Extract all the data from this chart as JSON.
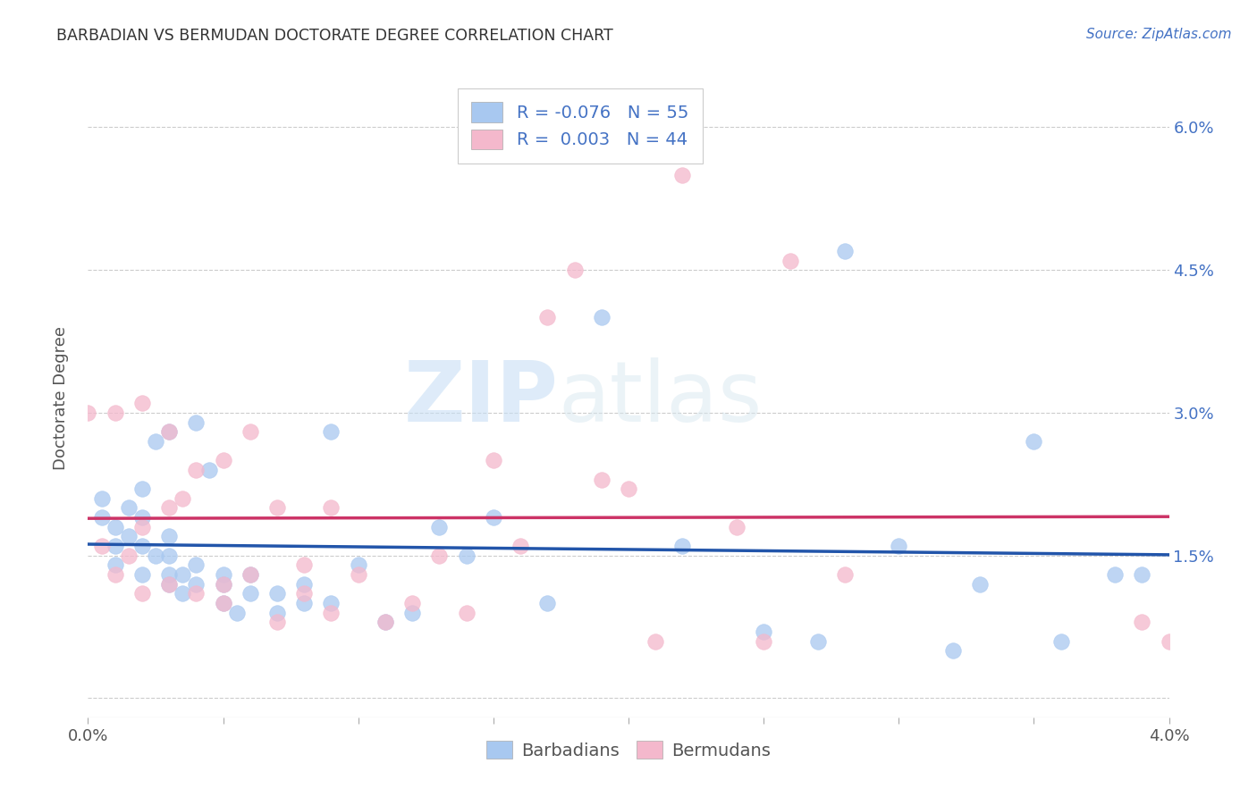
{
  "title": "BARBADIAN VS BERMUDAN DOCTORATE DEGREE CORRELATION CHART",
  "source": "Source: ZipAtlas.com",
  "ylabel": "Doctorate Degree",
  "ytick_vals": [
    0.0,
    0.015,
    0.03,
    0.045,
    0.06
  ],
  "ytick_labels": [
    "",
    "1.5%",
    "3.0%",
    "4.5%",
    "6.0%"
  ],
  "xlim": [
    0.0,
    0.04
  ],
  "ylim": [
    -0.002,
    0.065
  ],
  "legend_r1": "R = -0.076",
  "legend_n1": "N = 55",
  "legend_r2": "R =  0.003",
  "legend_n2": "N = 44",
  "color_blue": "#a8c8f0",
  "color_pink": "#f4b8cc",
  "line_blue": "#2255aa",
  "line_pink": "#cc3366",
  "barbadian_scatter_x": [
    0.0005,
    0.0005,
    0.001,
    0.001,
    0.001,
    0.0015,
    0.0015,
    0.002,
    0.002,
    0.002,
    0.002,
    0.0025,
    0.0025,
    0.003,
    0.003,
    0.003,
    0.003,
    0.003,
    0.0035,
    0.0035,
    0.004,
    0.004,
    0.004,
    0.0045,
    0.005,
    0.005,
    0.005,
    0.0055,
    0.006,
    0.006,
    0.007,
    0.007,
    0.008,
    0.008,
    0.009,
    0.009,
    0.01,
    0.011,
    0.012,
    0.013,
    0.014,
    0.015,
    0.017,
    0.019,
    0.022,
    0.025,
    0.027,
    0.028,
    0.03,
    0.032,
    0.033,
    0.035,
    0.036,
    0.038,
    0.039
  ],
  "barbadian_scatter_y": [
    0.019,
    0.021,
    0.014,
    0.016,
    0.018,
    0.017,
    0.02,
    0.013,
    0.016,
    0.019,
    0.022,
    0.015,
    0.027,
    0.012,
    0.013,
    0.015,
    0.017,
    0.028,
    0.011,
    0.013,
    0.012,
    0.014,
    0.029,
    0.024,
    0.01,
    0.012,
    0.013,
    0.009,
    0.011,
    0.013,
    0.009,
    0.011,
    0.01,
    0.012,
    0.01,
    0.028,
    0.014,
    0.008,
    0.009,
    0.018,
    0.015,
    0.019,
    0.01,
    0.04,
    0.016,
    0.007,
    0.006,
    0.047,
    0.016,
    0.005,
    0.012,
    0.027,
    0.006,
    0.013,
    0.013
  ],
  "bermudan_scatter_x": [
    0.0005,
    0.001,
    0.001,
    0.0015,
    0.002,
    0.002,
    0.002,
    0.003,
    0.003,
    0.003,
    0.0035,
    0.004,
    0.004,
    0.005,
    0.005,
    0.005,
    0.006,
    0.006,
    0.007,
    0.007,
    0.008,
    0.008,
    0.009,
    0.009,
    0.01,
    0.011,
    0.012,
    0.013,
    0.014,
    0.015,
    0.016,
    0.017,
    0.018,
    0.019,
    0.02,
    0.021,
    0.022,
    0.024,
    0.025,
    0.026,
    0.028,
    0.039,
    0.04,
    0.0
  ],
  "bermudan_scatter_y": [
    0.016,
    0.013,
    0.03,
    0.015,
    0.011,
    0.018,
    0.031,
    0.012,
    0.02,
    0.028,
    0.021,
    0.011,
    0.024,
    0.01,
    0.012,
    0.025,
    0.013,
    0.028,
    0.008,
    0.02,
    0.011,
    0.014,
    0.009,
    0.02,
    0.013,
    0.008,
    0.01,
    0.015,
    0.009,
    0.025,
    0.016,
    0.04,
    0.045,
    0.023,
    0.022,
    0.006,
    0.055,
    0.018,
    0.006,
    0.046,
    0.013,
    0.008,
    0.006,
    0.03
  ],
  "watermark_zip": "ZIP",
  "watermark_atlas": "atlas",
  "background_color": "#ffffff",
  "grid_color": "#cccccc"
}
